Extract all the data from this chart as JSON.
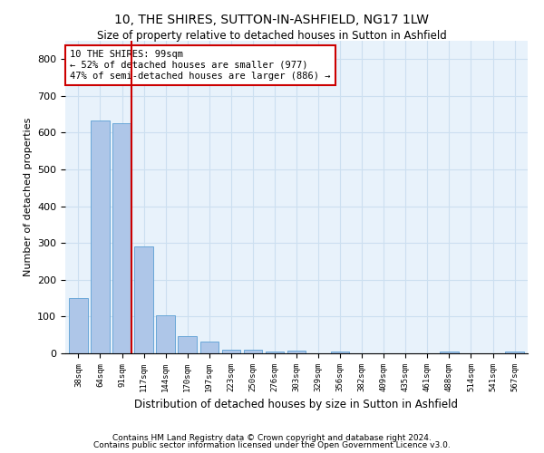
{
  "title": "10, THE SHIRES, SUTTON-IN-ASHFIELD, NG17 1LW",
  "subtitle": "Size of property relative to detached houses in Sutton in Ashfield",
  "xlabel": "Distribution of detached houses by size in Sutton in Ashfield",
  "ylabel": "Number of detached properties",
  "categories": [
    "38sqm",
    "64sqm",
    "91sqm",
    "117sqm",
    "144sqm",
    "170sqm",
    "197sqm",
    "223sqm",
    "250sqm",
    "276sqm",
    "303sqm",
    "329sqm",
    "356sqm",
    "382sqm",
    "409sqm",
    "435sqm",
    "461sqm",
    "488sqm",
    "514sqm",
    "541sqm",
    "567sqm"
  ],
  "values": [
    150,
    633,
    625,
    290,
    103,
    48,
    32,
    11,
    10,
    6,
    8,
    0,
    5,
    0,
    0,
    0,
    0,
    5,
    0,
    0,
    5
  ],
  "bar_color": "#aec6e8",
  "bar_edge_color": "#5a9fd4",
  "grid_color": "#ccdff0",
  "background_color": "#e8f2fb",
  "vline_color": "#cc0000",
  "annotation_text": "10 THE SHIRES: 99sqm\n← 52% of detached houses are smaller (977)\n47% of semi-detached houses are larger (886) →",
  "annotation_box_color": "#cc0000",
  "ylim": [
    0,
    850
  ],
  "yticks": [
    0,
    100,
    200,
    300,
    400,
    500,
    600,
    700,
    800
  ],
  "footnote1": "Contains HM Land Registry data © Crown copyright and database right 2024.",
  "footnote2": "Contains public sector information licensed under the Open Government Licence v3.0."
}
